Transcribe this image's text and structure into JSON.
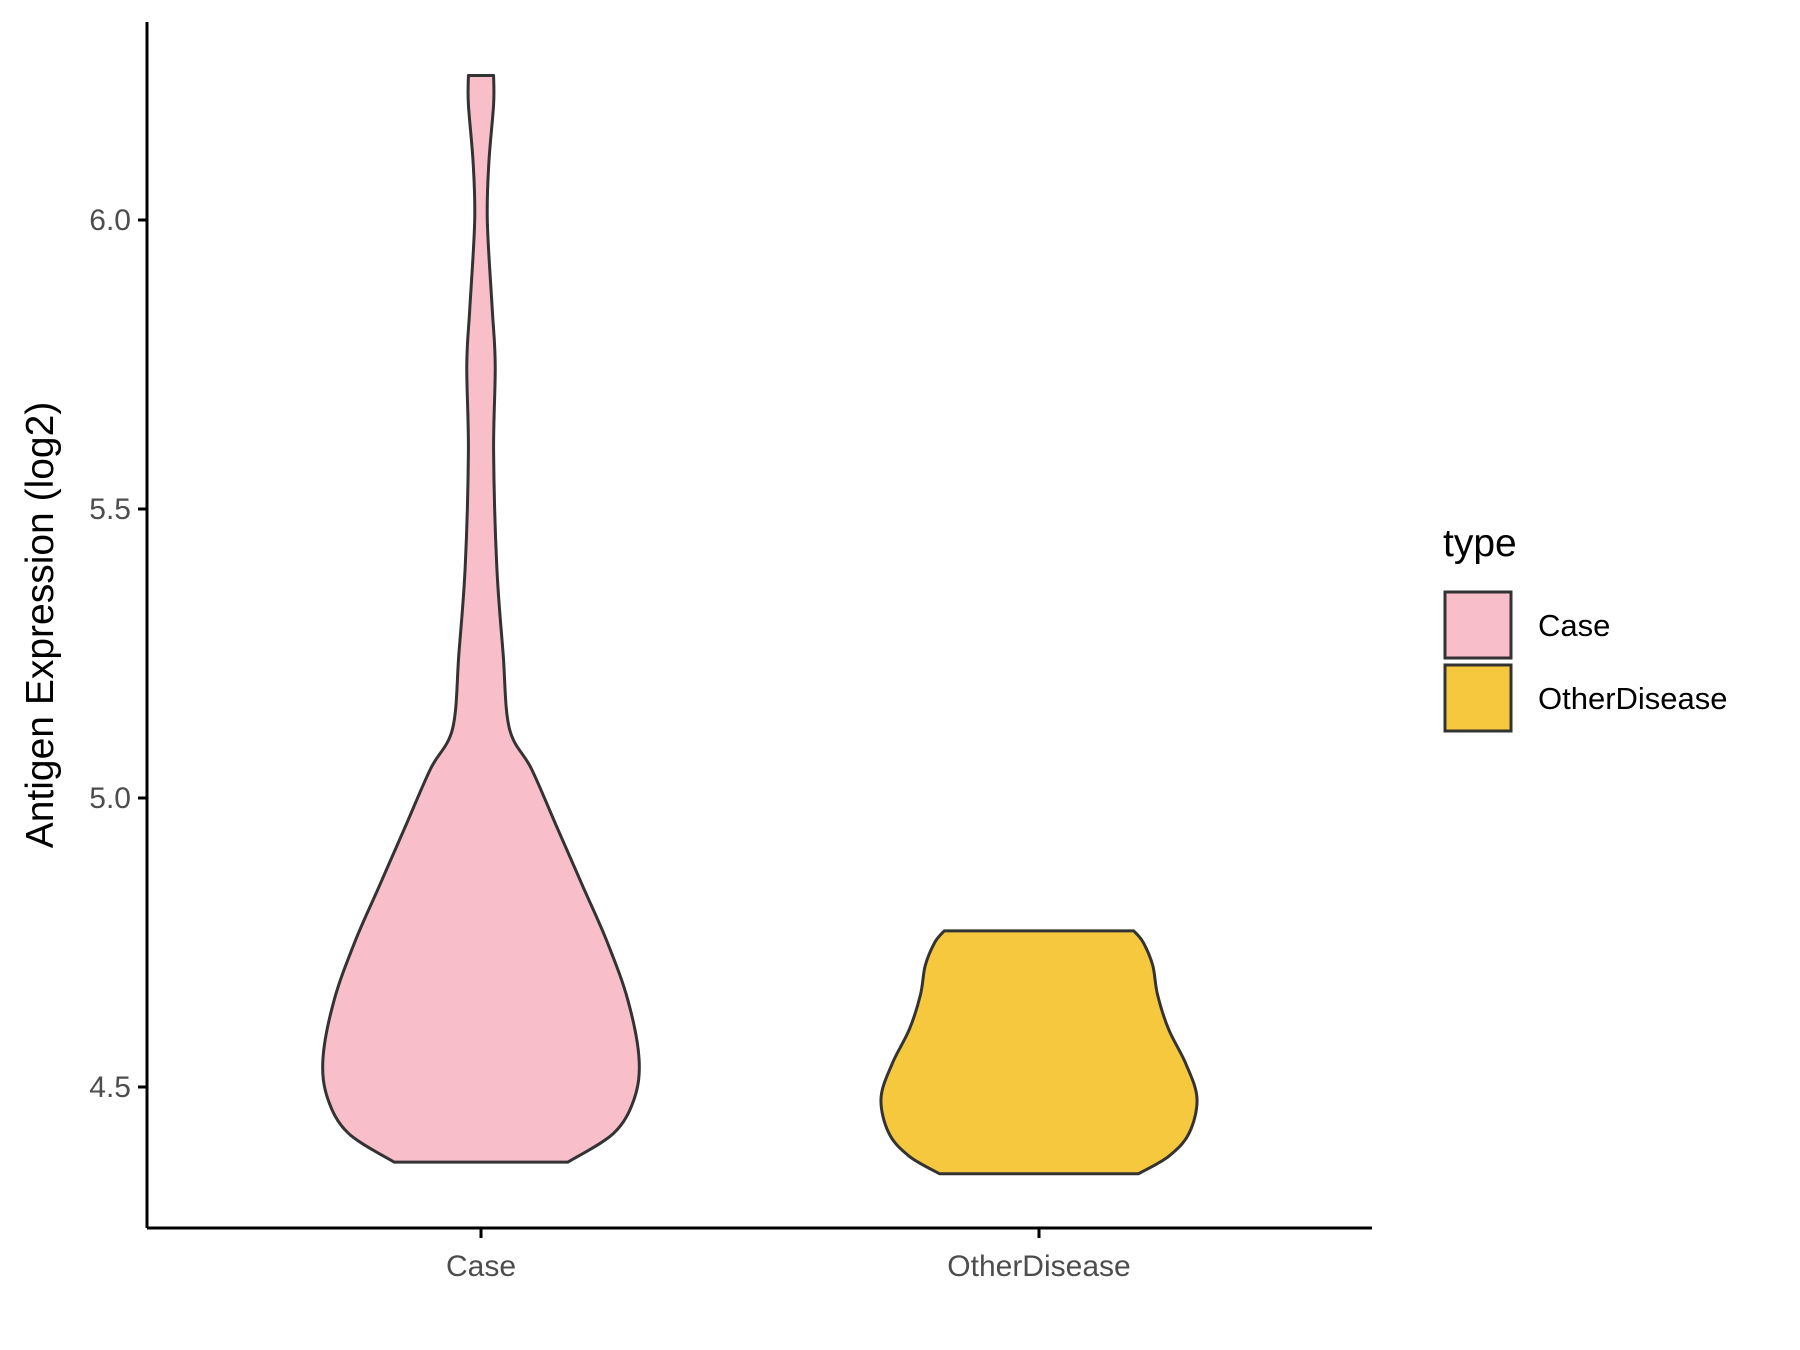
{
  "chart_data": {
    "type": "violin",
    "title": "",
    "xlabel": "",
    "ylabel": "Antigen Expression (log2)",
    "ylim": [
      4.26,
      6.34
    ],
    "yticks": [
      "4.5",
      "5.0",
      "5.5",
      "6.0"
    ],
    "categories": [
      "Case",
      "OtherDisease"
    ],
    "legend": {
      "title": "type",
      "position": "right",
      "entries": [
        {
          "label": "Case",
          "color": "#F8BFCB"
        },
        {
          "label": "OtherDisease",
          "color": "#F6C83E"
        }
      ]
    },
    "outline_color": "#333333",
    "grid": false,
    "series": [
      {
        "category": "Case",
        "color": "#F8BFCB",
        "min": 4.37,
        "max": 6.25,
        "density_profile": [
          [
            4.37,
            0.55
          ],
          [
            4.42,
            0.84
          ],
          [
            4.48,
            0.97
          ],
          [
            4.55,
            1.0
          ],
          [
            4.65,
            0.93
          ],
          [
            4.75,
            0.8
          ],
          [
            4.85,
            0.64
          ],
          [
            4.95,
            0.48
          ],
          [
            5.05,
            0.32
          ],
          [
            5.12,
            0.18
          ],
          [
            5.25,
            0.14
          ],
          [
            5.4,
            0.1
          ],
          [
            5.6,
            0.08
          ],
          [
            5.75,
            0.09
          ],
          [
            5.85,
            0.07
          ],
          [
            6.0,
            0.04
          ],
          [
            6.1,
            0.05
          ],
          [
            6.2,
            0.08
          ],
          [
            6.25,
            0.08
          ]
        ]
      },
      {
        "category": "OtherDisease",
        "color": "#F6C83E",
        "min": 4.35,
        "max": 4.77,
        "density_profile": [
          [
            4.35,
            0.63
          ],
          [
            4.38,
            0.82
          ],
          [
            4.42,
            0.95
          ],
          [
            4.48,
            1.0
          ],
          [
            4.54,
            0.93
          ],
          [
            4.6,
            0.82
          ],
          [
            4.66,
            0.75
          ],
          [
            4.71,
            0.72
          ],
          [
            4.75,
            0.66
          ],
          [
            4.77,
            0.6
          ]
        ]
      }
    ]
  }
}
